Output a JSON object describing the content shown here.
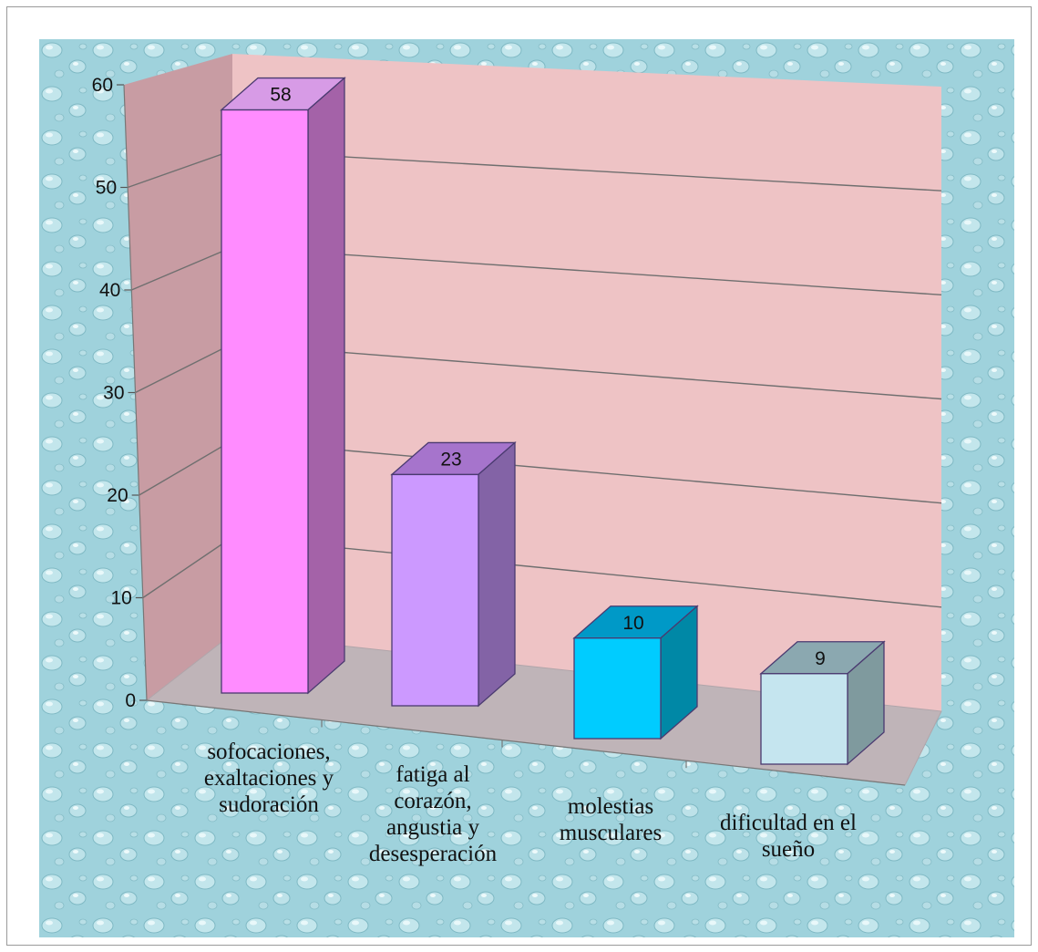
{
  "chart_data": {
    "type": "bar",
    "title": "",
    "xlabel": "",
    "ylabel": "",
    "ylim": [
      0,
      60
    ],
    "yticks": [
      "0",
      "10",
      "20",
      "30",
      "40",
      "50",
      "60"
    ],
    "grid": true,
    "legend": "none",
    "categories": [
      [
        "sofocaciones,",
        "exaltaciones y",
        "sudoración"
      ],
      [
        "fatiga al",
        "corazón,",
        "angustia y",
        "desesperación"
      ],
      [
        "molestias",
        "musculares"
      ],
      [
        "dificultad en el",
        "sueño"
      ]
    ],
    "values": [
      58,
      23,
      10,
      9
    ],
    "data_labels": [
      "58",
      "23",
      "10",
      "9"
    ],
    "colors": [
      {
        "front": "#ff8cff",
        "top": "#d79be6",
        "side": "#a462a8"
      },
      {
        "front": "#cc99ff",
        "top": "#a674cc",
        "side": "#8363a6"
      },
      {
        "front": "#00ccff",
        "top": "#0099c7",
        "side": "#0088a6"
      },
      {
        "front": "#c5e5ef",
        "top": "#8ba8b0",
        "side": "#7f9a9e"
      }
    ]
  }
}
